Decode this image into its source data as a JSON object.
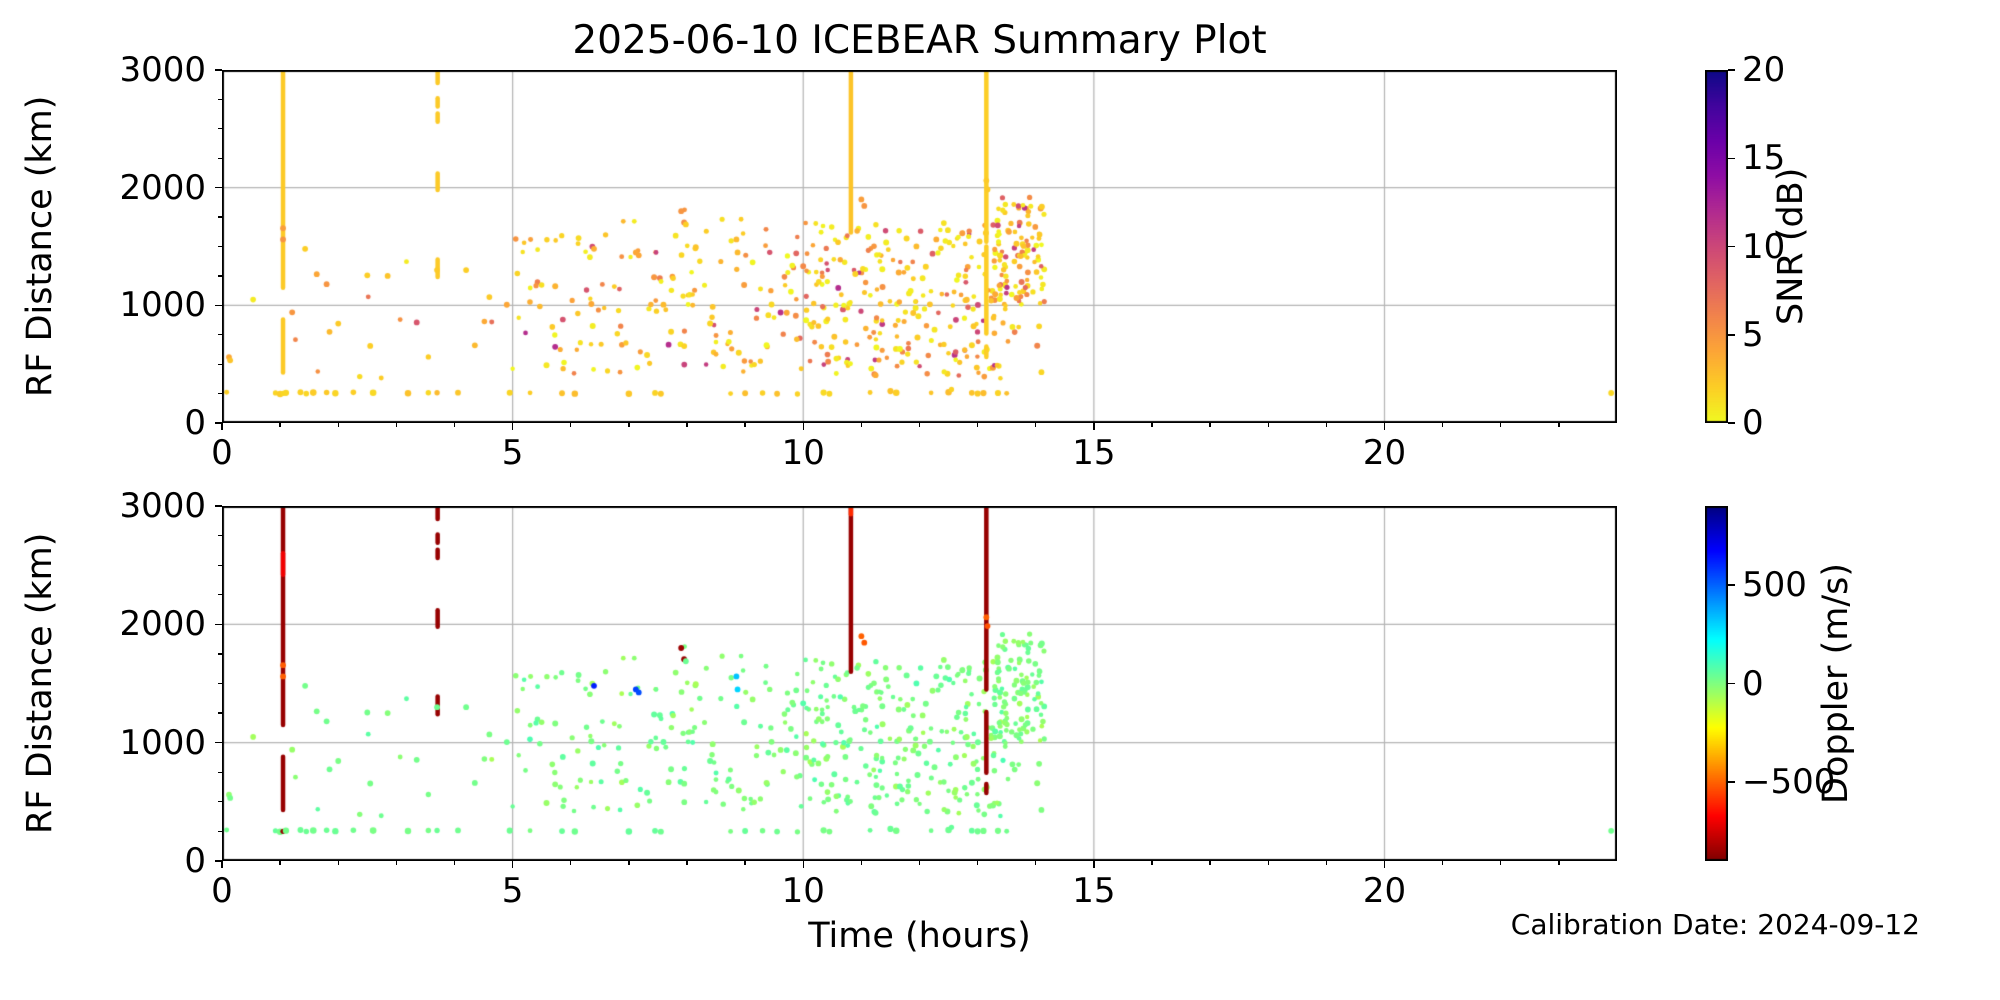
{
  "title": "2025-06-10 ICEBEAR Summary Plot",
  "xlabel": "Time (hours)",
  "calibration_note": "Calibration Date: 2024-09-12",
  "colors": {
    "background": "#ffffff",
    "grid": "#b4b4b4",
    "spine": "#000000",
    "text": "#000000",
    "snr_streak_gold": "#f5c62c",
    "doppler_streak_darkred": "#8b0000",
    "doppler_dot_green": "#7dff7a"
  },
  "colormaps": {
    "plasma": [
      [
        0,
        "#0d0887"
      ],
      [
        0.1,
        "#41049d"
      ],
      [
        0.2,
        "#6a00a8"
      ],
      [
        0.3,
        "#8f0da4"
      ],
      [
        0.4,
        "#b12a90"
      ],
      [
        0.5,
        "#cc4778"
      ],
      [
        0.6,
        "#e16462"
      ],
      [
        0.7,
        "#f2844b"
      ],
      [
        0.8,
        "#fca636"
      ],
      [
        0.9,
        "#fcce25"
      ],
      [
        1,
        "#f0f921"
      ]
    ],
    "jet": [
      [
        0,
        "#000080"
      ],
      [
        0.125,
        "#0000ff"
      ],
      [
        0.375,
        "#00ffff"
      ],
      [
        0.625,
        "#ffff00"
      ],
      [
        0.875,
        "#ff0000"
      ],
      [
        1,
        "#800000"
      ]
    ]
  },
  "chart_data": {
    "type": "scatter",
    "panels": [
      {
        "id": "snr",
        "ylabel": "RF Distance (km)",
        "xlim": [
          0,
          24
        ],
        "ylim": [
          0,
          3000
        ],
        "xticks": [
          0,
          5,
          10,
          15,
          20
        ],
        "yticks": [
          0,
          1000,
          2000,
          3000
        ],
        "x_minor_step": 1,
        "y_minor_step": 250,
        "grid_x": [
          5,
          10,
          15,
          20
        ],
        "grid_y": [
          1000,
          2000
        ],
        "value_key": "snr",
        "colorbar": {
          "label": "SNR (dB)",
          "cmap": "plasma",
          "reversed": true,
          "clim": [
            0,
            20
          ],
          "ticks": [
            0,
            5,
            10,
            15,
            20
          ]
        },
        "streaks": [
          {
            "t": 1.05,
            "w": 4.5,
            "value": 2.2,
            "segments": [
              [
                1150,
                3000
              ],
              [
                430,
                880
              ]
            ]
          },
          {
            "t": 3.71,
            "w": 4.5,
            "value": 2.2,
            "segments": [
              [
                2890,
                3000
              ],
              [
                2690,
                2760
              ],
              [
                2560,
                2630
              ],
              [
                1980,
                2120
              ],
              [
                1240,
                1390
              ]
            ]
          },
          {
            "t": 10.82,
            "w": 4.5,
            "value": 2.5,
            "segments": [
              [
                1620,
                3000
              ]
            ]
          },
          {
            "t": 13.15,
            "w": 4.5,
            "value": 2.0,
            "segments": [
              [
                1540,
                3000
              ],
              [
                760,
                1500
              ],
              [
                560,
                650
              ]
            ]
          }
        ]
      },
      {
        "id": "doppler",
        "ylabel": "RF Distance (km)",
        "xlim": [
          0,
          24
        ],
        "ylim": [
          0,
          3000
        ],
        "xticks": [
          0,
          5,
          10,
          15,
          20
        ],
        "yticks": [
          0,
          1000,
          2000,
          3000
        ],
        "x_minor_step": 1,
        "y_minor_step": 250,
        "grid_x": [
          5,
          10,
          15,
          20
        ],
        "grid_y": [
          1000,
          2000
        ],
        "value_key": "dop",
        "colorbar": {
          "label": "Doppler (m/s)",
          "cmap": "jet",
          "reversed": true,
          "clim": [
            -900,
            900
          ],
          "ticks": [
            -500,
            0,
            500
          ]
        },
        "streaks": [
          {
            "t": 1.05,
            "w": 4.5,
            "value": -860,
            "segments": [
              [
                1150,
                3000
              ],
              [
                430,
                880
              ]
            ]
          },
          {
            "t": 1.05,
            "w": 4.5,
            "value": -700,
            "segments": [
              [
                2420,
                2600
              ]
            ]
          },
          {
            "t": 3.71,
            "w": 4.5,
            "value": -860,
            "segments": [
              [
                2890,
                3000
              ],
              [
                2690,
                2760
              ],
              [
                2560,
                2630
              ],
              [
                1980,
                2120
              ],
              [
                1240,
                1390
              ]
            ]
          },
          {
            "t": 10.82,
            "w": 4.5,
            "value": -860,
            "segments": [
              [
                1600,
                3000
              ]
            ]
          },
          {
            "t": 10.82,
            "w": 4.5,
            "value": -600,
            "segments": [
              [
                2930,
                3000
              ]
            ]
          },
          {
            "t": 13.15,
            "w": 4.5,
            "value": -860,
            "segments": [
              [
                1450,
                3000
              ],
              [
                745,
                1260
              ],
              [
                575,
                650
              ]
            ]
          }
        ]
      }
    ],
    "scatter": {
      "seed": 42,
      "clusters": [
        {
          "n": 12,
          "t": [
            0.3,
            4.9
          ],
          "km": [
            350,
            1530
          ]
        },
        {
          "n": 155,
          "t": [
            5.0,
            10.0
          ],
          "km": [
            420,
            1620
          ]
        },
        {
          "n": 8,
          "t": [
            6.7,
            9.6
          ],
          "km": [
            1600,
            1830
          ]
        },
        {
          "n": 290,
          "t": [
            10.0,
            14.15
          ],
          "km": [
            380,
            1700
          ]
        },
        {
          "n": 75,
          "t": [
            13.2,
            14.15
          ],
          "km": [
            950,
            1930
          ]
        }
      ],
      "value_dists": {
        "snr": {
          "low": [
            0,
            2.5
          ],
          "mid": [
            2.5,
            6.5
          ],
          "high": [
            6.5,
            12
          ],
          "p": [
            0.55,
            0.33,
            0.12
          ]
        },
        "dop": {
          "center": 5,
          "spread": 90
        }
      },
      "bottom_row_km": 252,
      "bottom_row": [
        [
          0.08
        ],
        [
          0.92
        ],
        [
          1.0
        ],
        [
          1.05,
          -860
        ],
        [
          1.1
        ],
        [
          1.35
        ],
        [
          1.45
        ],
        [
          1.57
        ],
        [
          1.8
        ],
        [
          1.95
        ],
        [
          2.26
        ],
        [
          2.6
        ],
        [
          3.2
        ],
        [
          3.55
        ],
        [
          3.7
        ],
        [
          4.06
        ],
        [
          4.95
        ],
        [
          5.3
        ],
        [
          5.85
        ],
        [
          6.07
        ],
        [
          7.0
        ],
        [
          7.45
        ],
        [
          7.55
        ],
        [
          8.75
        ],
        [
          9.0
        ],
        [
          9.3
        ],
        [
          9.55
        ],
        [
          9.9
        ],
        [
          10.35
        ],
        [
          10.45
        ],
        [
          11.15
        ],
        [
          11.5
        ],
        [
          11.6
        ],
        [
          12.2
        ],
        [
          12.5
        ],
        [
          12.55
        ],
        [
          12.9
        ],
        [
          13.0
        ],
        [
          13.1
        ],
        [
          13.35
        ],
        [
          13.5
        ]
      ],
      "specials": [
        [
          0.12,
          560,
          4,
          -30
        ],
        [
          0.14,
          533,
          2.5,
          20
        ],
        [
          1.43,
          1480,
          2,
          20
        ],
        [
          1.63,
          1265,
          4,
          15
        ],
        [
          1.8,
          1180,
          5,
          25
        ],
        [
          1.85,
          775,
          3,
          30
        ],
        [
          2.0,
          845,
          2.2,
          10
        ],
        [
          2.5,
          1255,
          2,
          20
        ],
        [
          2.85,
          1250,
          2.5,
          -10
        ],
        [
          3.35,
          855,
          9,
          20
        ],
        [
          2.55,
          655,
          2,
          15
        ],
        [
          4.2,
          1300,
          2,
          25
        ],
        [
          4.6,
          1070,
          2.2,
          10
        ],
        [
          4.35,
          660,
          3,
          20
        ],
        [
          4.9,
          1005,
          4,
          30
        ],
        [
          6.4,
          1480,
          3.5,
          620
        ],
        [
          7.12,
          1450,
          4,
          560
        ],
        [
          7.17,
          1425,
          4,
          540
        ],
        [
          8.85,
          1560,
          3,
          330
        ],
        [
          8.87,
          1450,
          3,
          300
        ],
        [
          7.9,
          1800,
          5,
          -850
        ],
        [
          7.95,
          1705,
          5.5,
          -858
        ],
        [
          7.98,
          1688,
          2,
          35
        ],
        [
          11.0,
          1900,
          4.5,
          -505
        ],
        [
          11.05,
          1845,
          5,
          -520
        ],
        [
          13.15,
          2060,
          2.2,
          -505
        ],
        [
          13.17,
          1985,
          2.2,
          -530
        ],
        [
          1.05,
          1655,
          4.5,
          -515
        ],
        [
          1.05,
          1560,
          5,
          -508
        ],
        [
          3.7,
          1300,
          2.2,
          30
        ],
        [
          23.9,
          255,
          1.6,
          25
        ]
      ]
    }
  }
}
